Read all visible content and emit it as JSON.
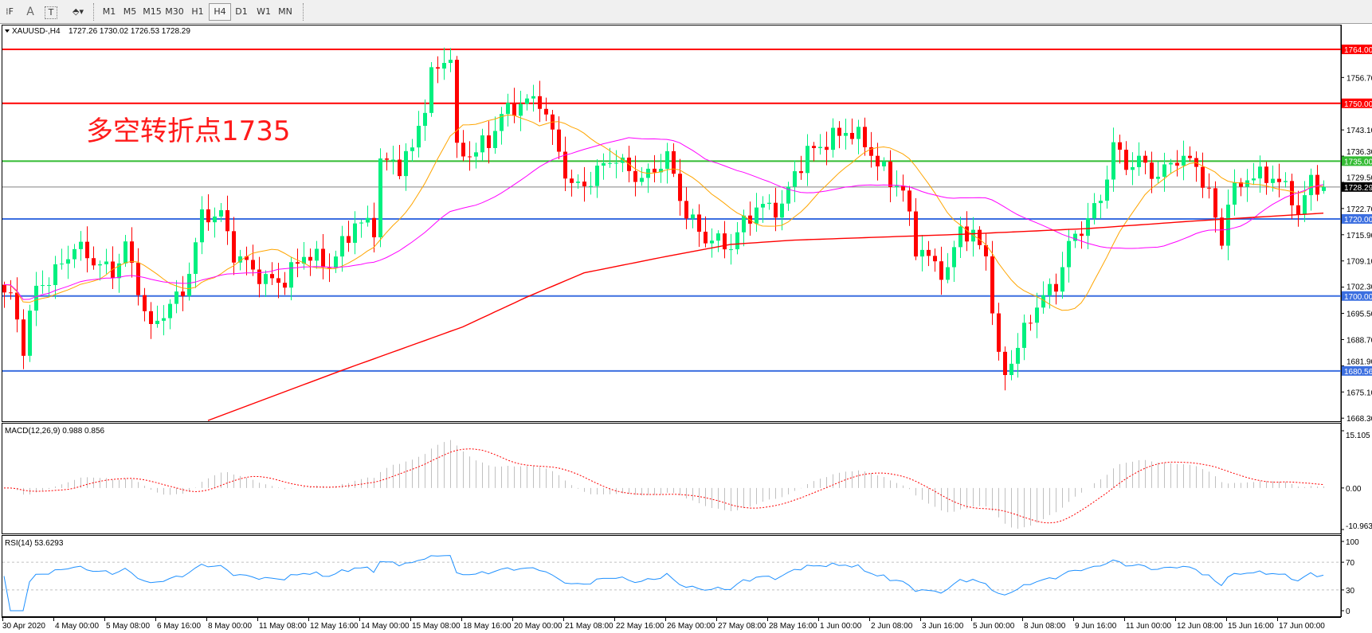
{
  "toolbar": {
    "tools": [
      {
        "name": "grid-properties-icon",
        "glyph": "⁞F"
      },
      {
        "name": "text-tool-icon",
        "glyph": "A"
      },
      {
        "name": "text-label-tool-icon",
        "glyph": "T"
      },
      {
        "name": "arrows-tool-icon",
        "glyph": "⬘▾"
      }
    ],
    "timeframes": [
      "M1",
      "M5",
      "M15",
      "M30",
      "H1",
      "H4",
      "D1",
      "W1",
      "MN"
    ],
    "active_timeframe": "H4"
  },
  "chart": {
    "title": "XAUUSD-,H4",
    "ohlc_readout": "1727.26 1730.02 1726.53 1728.29",
    "annotation": "多空转折点1735",
    "annotation_color": "#ff1a1a",
    "bull_color": "#00f07f",
    "bear_color": "#ff0000",
    "current_price": 1728.29,
    "current_price_label": "1728.29",
    "levels": [
      {
        "price": 1764.0,
        "label": "1764.00",
        "color": "#ff0000"
      },
      {
        "price": 1750.0,
        "label": "1750.00",
        "color": "#ff0000"
      },
      {
        "price": 1735.0,
        "label": "1735.00",
        "color": "#33bb33"
      },
      {
        "price": 1720.0,
        "label": "1720.00",
        "color": "#3c6fe0"
      },
      {
        "price": 1700.0,
        "label": "1700.00",
        "color": "#3c6fe0"
      },
      {
        "price": 1680.56,
        "label": "1680.56",
        "color": "#3c6fe0"
      }
    ],
    "price_ticks": [
      "1756.70",
      "1743.10",
      "1736.30",
      "1729.50",
      "1722.70",
      "1715.90",
      "1709.10",
      "1702.30",
      "1695.50",
      "1688.70",
      "1681.90",
      "1675.10",
      "1668.30"
    ]
  },
  "chart_data": {
    "type": "candlestick",
    "symbol": "XAUUSD-",
    "timeframe": "H4",
    "bars": 208,
    "ylim": [
      1668.3,
      1770.5
    ],
    "last_bar": {
      "open": 1727.26,
      "high": 1730.02,
      "low": 1726.53,
      "close": 1728.29
    },
    "close_path": [
      [
        0,
        1700
      ],
      [
        1,
        1700
      ],
      [
        3,
        1687
      ],
      [
        5,
        1702
      ],
      [
        8,
        1706
      ],
      [
        11,
        1713
      ],
      [
        15,
        1708
      ],
      [
        17,
        1706
      ],
      [
        19,
        1713
      ],
      [
        23,
        1691
      ],
      [
        25,
        1696
      ],
      [
        28,
        1701
      ],
      [
        30,
        1713
      ],
      [
        31,
        1721
      ],
      [
        34,
        1721
      ],
      [
        36,
        1711
      ],
      [
        41,
        1704
      ],
      [
        44,
        1704
      ],
      [
        47,
        1711
      ],
      [
        51,
        1708
      ],
      [
        53,
        1713
      ],
      [
        55,
        1719
      ],
      [
        58,
        1718
      ],
      [
        59,
        1735
      ],
      [
        62,
        1734
      ],
      [
        64,
        1738
      ],
      [
        66,
        1750
      ],
      [
        67,
        1757
      ],
      [
        69,
        1761
      ],
      [
        70,
        1763
      ],
      [
        71,
        1737
      ],
      [
        73,
        1737
      ],
      [
        76,
        1740
      ],
      [
        78,
        1747
      ],
      [
        81,
        1750
      ],
      [
        84,
        1751
      ],
      [
        86,
        1742
      ],
      [
        89,
        1728
      ],
      [
        92,
        1730
      ],
      [
        95,
        1736
      ],
      [
        97,
        1734
      ],
      [
        100,
        1730
      ],
      [
        104,
        1736
      ],
      [
        107,
        1721
      ],
      [
        110,
        1715
      ],
      [
        114,
        1713
      ],
      [
        116,
        1719
      ],
      [
        118,
        1723
      ],
      [
        122,
        1723
      ],
      [
        124,
        1732
      ],
      [
        126,
        1737
      ],
      [
        129,
        1740
      ],
      [
        132,
        1743
      ],
      [
        135,
        1740
      ],
      [
        137,
        1734
      ],
      [
        141,
        1727
      ],
      [
        143,
        1713
      ],
      [
        146,
        1708
      ],
      [
        148,
        1706
      ],
      [
        150,
        1718
      ],
      [
        152,
        1715
      ],
      [
        154,
        1711
      ],
      [
        156,
        1683
      ],
      [
        157,
        1680
      ],
      [
        159,
        1687
      ],
      [
        162,
        1698
      ],
      [
        165,
        1703
      ],
      [
        167,
        1713
      ],
      [
        170,
        1720
      ],
      [
        172,
        1725
      ],
      [
        174,
        1739
      ],
      [
        176,
        1734
      ],
      [
        178,
        1735
      ],
      [
        181,
        1731
      ],
      [
        184,
        1736
      ],
      [
        187,
        1734
      ],
      [
        189,
        1726
      ],
      [
        191,
        1714
      ],
      [
        192,
        1725
      ],
      [
        195,
        1731
      ],
      [
        199,
        1731
      ],
      [
        202,
        1726
      ],
      [
        203,
        1721
      ],
      [
        205,
        1730
      ],
      [
        207,
        1728.29
      ]
    ],
    "moving_averages": [
      {
        "color": "#ffa500",
        "period": 14
      },
      {
        "color": "#ff00ff",
        "period": 40
      },
      {
        "color": "#ff0000",
        "path": [
          [
            32,
            1667.7
          ],
          [
            53,
            1680.7
          ],
          [
            72,
            1692
          ],
          [
            82,
            1699.7
          ],
          [
            91,
            1706
          ],
          [
            104,
            1710.3
          ],
          [
            114,
            1713.4
          ],
          [
            124,
            1714.5
          ],
          [
            150,
            1716
          ],
          [
            170,
            1717.5
          ],
          [
            187,
            1719.5
          ],
          [
            207,
            1721.5
          ]
        ]
      }
    ],
    "x_labels": [
      "30 Apr 2020",
      "4 May 00:00",
      "5 May 08:00",
      "6 May 16:00",
      "8 May 00:00",
      "11 May 08:00",
      "12 May 16:00",
      "14 May 00:00",
      "15 May 08:00",
      "18 May 16:00",
      "20 May 00:00",
      "21 May 08:00",
      "22 May 16:00",
      "26 May 00:00",
      "27 May 08:00",
      "28 May 16:00",
      "1 Jun 00:00",
      "2 Jun 08:00",
      "3 Jun 16:00",
      "5 Jun 00:00",
      "8 Jun 08:00",
      "9 Jun 16:00",
      "11 Jun 00:00",
      "12 Jun 08:00",
      "15 Jun 16:00",
      "17 Jun 00:00"
    ]
  },
  "macd": {
    "label": "MACD(12,26,9) 0.988 0.856",
    "ticks": [
      "15.105",
      "0.00",
      "-10.963"
    ],
    "range": [
      -10.963,
      15.105
    ],
    "histogram_color": "#c0c0c0",
    "signal_color": "#ff0000"
  },
  "rsi": {
    "label": "RSI(14) 53.6293",
    "ticks": [
      "100",
      "70",
      "30",
      "0"
    ],
    "levels": [
      70,
      30
    ],
    "line_color": "#1e90ff"
  }
}
